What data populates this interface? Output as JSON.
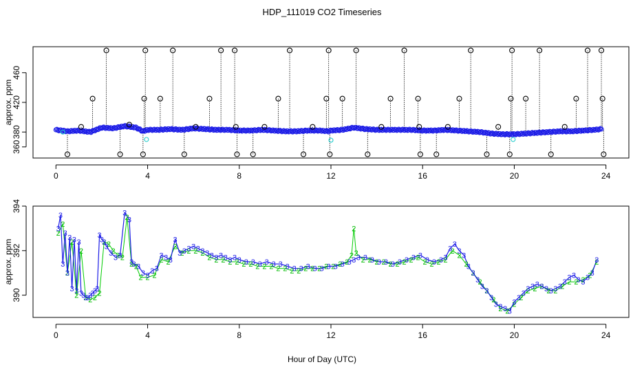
{
  "chart_data": [
    {
      "type": "scatter",
      "title": "HDP_111019  CO2 Timeseries",
      "ylabel": "approx. ppm",
      "xlabel": "",
      "xlim": [
        -1,
        25
      ],
      "ylim": [
        345,
        495
      ],
      "xticks": [
        0,
        4,
        8,
        12,
        16,
        20,
        24
      ],
      "xtick_labels": [
        "0",
        "4",
        "8",
        "12",
        "16",
        "20",
        "24"
      ],
      "yticks": [
        360,
        380,
        420,
        460
      ],
      "ytick_labels": [
        "360",
        "380",
        "420",
        "460"
      ],
      "baseline_series": {
        "name": "measurements (blue circles)",
        "x": [
          0.0,
          0.5,
          1.0,
          1.5,
          2.0,
          2.5,
          3.0,
          3.5,
          3.8,
          4.0,
          4.5,
          5.0,
          5.5,
          6.0,
          6.5,
          7.0,
          7.5,
          8.0,
          8.5,
          9.0,
          9.5,
          10.0,
          10.5,
          11.0,
          11.5,
          11.9,
          12.0,
          12.5,
          13.0,
          13.5,
          14.0,
          14.5,
          15.0,
          15.5,
          16.0,
          16.5,
          17.0,
          17.5,
          18.0,
          18.5,
          19.0,
          19.5,
          19.8,
          20.0,
          20.5,
          21.0,
          21.5,
          22.0,
          22.5,
          23.0,
          23.5,
          23.8
        ],
        "y": [
          383,
          381,
          382,
          380,
          386,
          385,
          388,
          386,
          381,
          383,
          383,
          384,
          383,
          385,
          384,
          383,
          383,
          382,
          382,
          383,
          382,
          381,
          381,
          382,
          382,
          381,
          382,
          383,
          386,
          384,
          383,
          383,
          383,
          383,
          382,
          382,
          383,
          382,
          381,
          380,
          378,
          377,
          377,
          377,
          378,
          379,
          380,
          381,
          381,
          382,
          383,
          384
        ]
      },
      "cyan_points": {
        "name": "flagged (cyan)",
        "x": [
          0.3,
          3.95,
          12.0,
          19.95
        ],
        "y": [
          380,
          370,
          369,
          370
        ]
      },
      "spikes": {
        "name": "spikes (black circles with dotted drops)",
        "x": [
          0.5,
          1.1,
          1.6,
          2.2,
          2.8,
          3.2,
          3.8,
          3.85,
          3.9,
          4.55,
          5.1,
          5.6,
          6.1,
          6.7,
          7.2,
          7.8,
          7.85,
          7.9,
          8.6,
          9.1,
          9.7,
          10.2,
          10.8,
          11.2,
          11.8,
          11.9,
          11.95,
          12.5,
          13.1,
          13.6,
          14.2,
          14.6,
          15.2,
          15.8,
          15.85,
          15.9,
          16.6,
          17.1,
          17.6,
          18.1,
          18.8,
          19.3,
          19.8,
          19.85,
          19.9,
          20.5,
          21.1,
          21.6,
          22.2,
          22.7,
          23.2,
          23.8,
          23.85,
          23.9
        ],
        "y": [
          350,
          387,
          425,
          490,
          350,
          390,
          350,
          425,
          490,
          425,
          490,
          350,
          387,
          425,
          490,
          490,
          387,
          350,
          350,
          387,
          425,
          490,
          350,
          387,
          425,
          490,
          350,
          425,
          490,
          350,
          387,
          425,
          490,
          425,
          387,
          350,
          350,
          387,
          425,
          490,
          350,
          387,
          350,
          425,
          490,
          425,
          490,
          350,
          387,
          425,
          490,
          490,
          425,
          350
        ]
      }
    },
    {
      "type": "line",
      "title": "",
      "ylabel": "approx. ppm",
      "xlabel": "Hour of Day (UTC)",
      "xlim": [
        -1,
        25
      ],
      "ylim": [
        389.0,
        394.0
      ],
      "xticks": [
        0,
        4,
        8,
        12,
        16,
        20,
        24
      ],
      "xtick_labels": [
        "0",
        "4",
        "8",
        "12",
        "16",
        "20",
        "24"
      ],
      "yticks": [
        390,
        392,
        394
      ],
      "ytick_labels": [
        "390",
        "392",
        "394"
      ],
      "series": [
        {
          "name": "3",
          "marker_label": "3",
          "x": [
            0.1,
            0.2,
            0.3,
            0.4,
            0.5,
            0.6,
            0.7,
            0.8,
            0.9,
            1.0,
            1.1,
            1.2,
            1.3,
            1.4,
            1.5,
            1.6,
            1.7,
            1.8,
            1.9,
            2.0,
            2.1,
            2.2,
            2.4,
            2.6,
            2.8,
            3.0,
            3.2,
            3.3,
            3.4,
            3.6,
            3.8,
            4.0,
            4.2,
            4.4,
            4.6,
            4.8,
            5.0,
            5.2,
            5.4,
            5.6,
            5.8,
            6.0,
            6.2,
            6.4,
            6.6,
            6.8,
            7.0,
            7.2,
            7.4,
            7.6,
            7.8,
            8.0,
            8.3,
            8.6,
            8.9,
            9.2,
            9.5,
            9.8,
            10.1,
            10.4,
            10.7,
            11.0,
            11.3,
            11.6,
            11.9,
            12.2,
            12.5,
            12.8,
            13.0,
            13.2,
            13.5,
            13.8,
            14.1,
            14.4,
            14.7,
            15.0,
            15.3,
            15.6,
            15.9,
            16.2,
            16.5,
            16.8,
            17.0,
            17.2,
            17.4,
            17.6,
            17.8,
            18.0,
            18.2,
            18.4,
            18.6,
            18.8,
            19.0,
            19.2,
            19.4,
            19.6,
            19.8,
            20.0,
            20.2,
            20.4,
            20.6,
            20.8,
            21.0,
            21.2,
            21.4,
            21.6,
            21.8,
            22.0,
            22.2,
            22.4,
            22.6,
            22.8,
            23.0,
            23.2,
            23.4,
            23.6
          ],
          "y": [
            393.0,
            393.6,
            391.4,
            392.8,
            391.0,
            392.6,
            390.3,
            392.5,
            390.2,
            392.4,
            390.1,
            390.0,
            389.9,
            389.9,
            390.0,
            390.1,
            390.2,
            390.3,
            392.7,
            392.5,
            392.4,
            392.2,
            391.9,
            391.7,
            391.8,
            393.7,
            393.4,
            391.5,
            391.4,
            391.3,
            391.0,
            390.9,
            391.1,
            391.2,
            391.8,
            391.7,
            391.6,
            392.5,
            391.9,
            392.0,
            392.1,
            392.2,
            392.1,
            392.0,
            391.9,
            391.8,
            391.7,
            391.8,
            391.7,
            391.6,
            391.7,
            391.6,
            391.5,
            391.5,
            391.4,
            391.5,
            391.4,
            391.4,
            391.3,
            391.2,
            391.2,
            391.3,
            391.2,
            391.2,
            391.3,
            391.3,
            391.4,
            391.5,
            391.6,
            391.7,
            391.7,
            391.6,
            391.5,
            391.5,
            391.4,
            391.5,
            391.6,
            391.7,
            391.8,
            391.6,
            391.5,
            391.6,
            391.7,
            392.1,
            392.3,
            392.0,
            391.8,
            391.3,
            391.0,
            390.7,
            390.4,
            390.2,
            389.9,
            389.6,
            389.5,
            389.4,
            389.3,
            389.7,
            389.9,
            390.1,
            390.3,
            390.4,
            390.5,
            390.4,
            390.3,
            390.2,
            390.3,
            390.4,
            390.6,
            390.8,
            390.9,
            390.7,
            390.6,
            390.8,
            391.0,
            391.6
          ],
          "color": "#1a1ae6"
        },
        {
          "name": "2",
          "marker_label": "2",
          "x": [
            0.1,
            0.3,
            0.5,
            0.7,
            0.9,
            1.1,
            1.3,
            1.5,
            1.7,
            1.9,
            2.1,
            2.3,
            2.5,
            2.7,
            2.9,
            3.1,
            3.3,
            3.5,
            3.7,
            4.0,
            4.3,
            4.6,
            4.9,
            5.2,
            5.5,
            5.8,
            6.1,
            6.4,
            6.7,
            7.0,
            7.3,
            7.6,
            7.9,
            8.2,
            8.5,
            8.8,
            9.1,
            9.4,
            9.7,
            10.0,
            10.3,
            10.6,
            10.9,
            11.2,
            11.5,
            11.8,
            12.1,
            12.4,
            12.7,
            12.9,
            13.0,
            13.1,
            13.4,
            13.7,
            14.0,
            14.3,
            14.6,
            14.9,
            15.2,
            15.5,
            15.8,
            16.1,
            16.4,
            16.7,
            17.0,
            17.3,
            17.6,
            17.9,
            18.2,
            18.5,
            18.8,
            19.1,
            19.4,
            19.7,
            20.0,
            20.3,
            20.6,
            20.9,
            21.2,
            21.5,
            21.8,
            22.1,
            22.4,
            22.7,
            23.0,
            23.3,
            23.6
          ],
          "y": [
            392.8,
            393.2,
            391.0,
            392.4,
            390.0,
            392.0,
            389.9,
            389.8,
            389.9,
            390.1,
            392.4,
            392.3,
            392.0,
            391.8,
            391.7,
            393.5,
            391.4,
            391.3,
            390.8,
            390.8,
            390.9,
            391.6,
            391.5,
            392.2,
            391.9,
            392.0,
            392.0,
            391.9,
            391.7,
            391.6,
            391.6,
            391.5,
            391.5,
            391.4,
            391.4,
            391.3,
            391.3,
            391.3,
            391.2,
            391.2,
            391.1,
            391.1,
            391.2,
            391.2,
            391.2,
            391.3,
            391.3,
            391.4,
            391.5,
            391.8,
            393.0,
            391.9,
            391.6,
            391.6,
            391.5,
            391.5,
            391.4,
            391.4,
            391.5,
            391.6,
            391.7,
            391.5,
            391.4,
            391.5,
            391.6,
            392.0,
            391.8,
            391.4,
            391.0,
            390.6,
            390.2,
            389.8,
            389.4,
            389.3,
            389.6,
            389.9,
            390.2,
            390.3,
            390.4,
            390.2,
            390.2,
            390.4,
            390.6,
            390.6,
            390.7,
            390.9,
            391.5
          ],
          "color": "#00cc00"
        }
      ]
    }
  ]
}
